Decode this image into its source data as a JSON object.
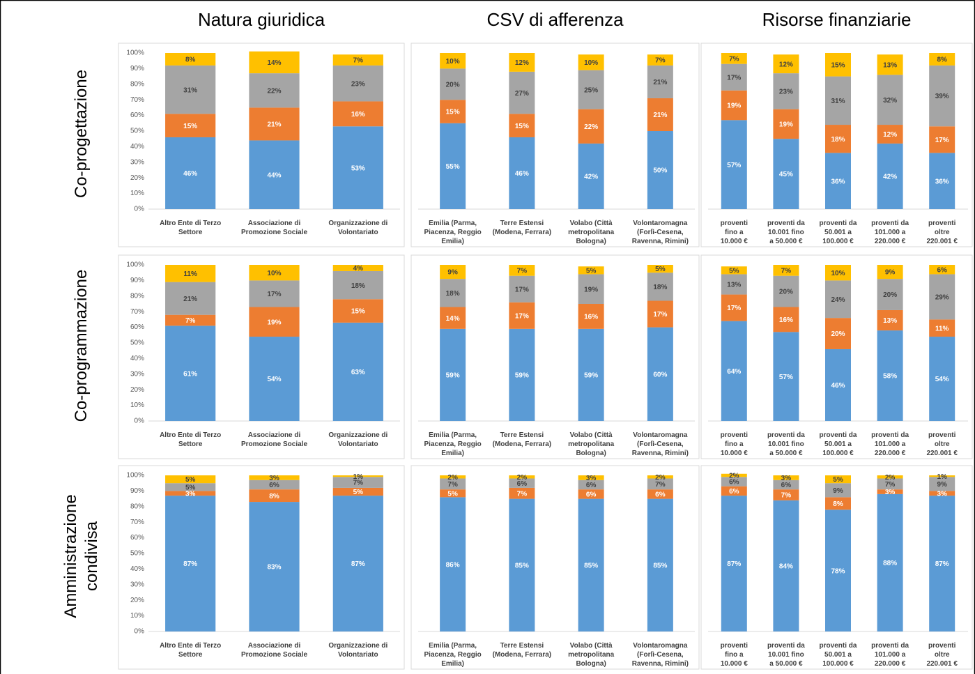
{
  "columns": [
    "Natura giuridica",
    "CSV di afferenza",
    "Risorse finanziarie"
  ],
  "rows": [
    "Co-progettazione",
    "Co-programmazione",
    "Amministrazione condivisa"
  ],
  "chart_data": [
    {
      "type": "bar",
      "stacked": true,
      "categories": [
        "Altro Ente di Terzo Settore",
        "Associazione di Promozione Sociale",
        "Organizzazione di Volontariato"
      ],
      "ylim": [
        0,
        100
      ],
      "yticks": [
        {
          "value": 0,
          "label": "0%"
        },
        {
          "value": 10,
          "label": "10%"
        },
        {
          "value": 20,
          "label": "20%"
        },
        {
          "value": 30,
          "label": "30%"
        },
        {
          "value": 40,
          "label": "40%"
        },
        {
          "value": 50,
          "label": "50%"
        },
        {
          "value": 60,
          "label": "60%"
        },
        {
          "value": 70,
          "label": "70%"
        },
        {
          "value": 80,
          "label": "80%"
        },
        {
          "value": 90,
          "label": "90%"
        },
        {
          "value": 100,
          "label": "100%"
        }
      ],
      "series": [
        {
          "color": "#5b9bd5",
          "values": [
            46,
            44,
            53
          ],
          "value_labels": [
            "46%",
            "44%",
            "53%"
          ]
        },
        {
          "color": "#ed7d31",
          "values": [
            15,
            21,
            16
          ],
          "value_labels": [
            "15%",
            "21%",
            "16%"
          ]
        },
        {
          "color": "#a5a5a5",
          "values": [
            31,
            22,
            23
          ],
          "value_labels": [
            "31%",
            "22%",
            "23%"
          ]
        },
        {
          "color": "#ffc000",
          "values": [
            8,
            14,
            7
          ],
          "value_labels": [
            "8%",
            "14%",
            "7%"
          ]
        }
      ]
    },
    {
      "type": "bar",
      "stacked": true,
      "categories": [
        "Emilia (Parma, Piacenza, Reggio Emilia)",
        "Terre Estensi (Modena, Ferrara)",
        "Volabo (Città metropolitana Bologna)",
        "Volontaromagna (Forlì-Cesena, Ravenna, Rimini)"
      ],
      "ylim": [
        0,
        100
      ],
      "series": [
        {
          "color": "#5b9bd5",
          "values": [
            55,
            46,
            42,
            50
          ],
          "value_labels": [
            "55%",
            "46%",
            "42%",
            "50%"
          ]
        },
        {
          "color": "#ed7d31",
          "values": [
            15,
            15,
            22,
            21
          ],
          "value_labels": [
            "15%",
            "15%",
            "22%",
            "21%"
          ]
        },
        {
          "color": "#a5a5a5",
          "values": [
            20,
            27,
            25,
            21
          ],
          "value_labels": [
            "20%",
            "27%",
            "25%",
            "21%"
          ]
        },
        {
          "color": "#ffc000",
          "values": [
            10,
            12,
            10,
            7
          ],
          "value_labels": [
            "10%",
            "12%",
            "10%",
            "7%"
          ]
        }
      ]
    },
    {
      "type": "bar",
      "stacked": true,
      "categories": [
        "proventi fino a 10.000 €",
        "proventi da 10.001 fino a 50.000 €",
        "proventi da 50.001 a 100.000 €",
        "proventi da 101.000 a 220.000 €",
        "proventi oltre 220.001 €"
      ],
      "ylim": [
        0,
        100
      ],
      "series": [
        {
          "color": "#5b9bd5",
          "values": [
            57,
            45,
            36,
            42,
            36
          ],
          "value_labels": [
            "57%",
            "45%",
            "36%",
            "42%",
            "36%"
          ]
        },
        {
          "color": "#ed7d31",
          "values": [
            19,
            19,
            18,
            12,
            17
          ],
          "value_labels": [
            "19%",
            "19%",
            "18%",
            "12%",
            "17%"
          ]
        },
        {
          "color": "#a5a5a5",
          "values": [
            17,
            23,
            31,
            32,
            39
          ],
          "value_labels": [
            "17%",
            "23%",
            "31%",
            "32%",
            "39%"
          ]
        },
        {
          "color": "#ffc000",
          "values": [
            7,
            12,
            15,
            13,
            8
          ],
          "value_labels": [
            "7%",
            "12%",
            "15%",
            "13%",
            "8%"
          ]
        }
      ]
    },
    {
      "type": "bar",
      "stacked": true,
      "categories": [
        "Altro Ente di Terzo Settore",
        "Associazione di Promozione Sociale",
        "Organizzazione di Volontariato"
      ],
      "ylim": [
        0,
        100
      ],
      "yticks": [
        {
          "value": 0,
          "label": "0%"
        },
        {
          "value": 10,
          "label": "10%"
        },
        {
          "value": 20,
          "label": "20%"
        },
        {
          "value": 30,
          "label": "30%"
        },
        {
          "value": 40,
          "label": "40%"
        },
        {
          "value": 50,
          "label": "50%"
        },
        {
          "value": 60,
          "label": "60%"
        },
        {
          "value": 70,
          "label": "70%"
        },
        {
          "value": 80,
          "label": "80%"
        },
        {
          "value": 90,
          "label": "90%"
        },
        {
          "value": 100,
          "label": "100%"
        }
      ],
      "series": [
        {
          "color": "#5b9bd5",
          "values": [
            61,
            54,
            63
          ],
          "value_labels": [
            "61%",
            "54%",
            "63%"
          ]
        },
        {
          "color": "#ed7d31",
          "values": [
            7,
            19,
            15
          ],
          "value_labels": [
            "7%",
            "19%",
            "15%"
          ]
        },
        {
          "color": "#a5a5a5",
          "values": [
            21,
            17,
            18
          ],
          "value_labels": [
            "21%",
            "17%",
            "18%"
          ]
        },
        {
          "color": "#ffc000",
          "values": [
            11,
            10,
            4
          ],
          "value_labels": [
            "11%",
            "10%",
            "4%"
          ]
        }
      ]
    },
    {
      "type": "bar",
      "stacked": true,
      "categories": [
        "Emilia (Parma, Piacenza, Reggio Emilia)",
        "Terre Estensi (Modena, Ferrara)",
        "Volabo (Città metropolitana Bologna)",
        "Volontaromagna (Forlì-Cesena, Ravenna, Rimini)"
      ],
      "ylim": [
        0,
        100
      ],
      "series": [
        {
          "color": "#5b9bd5",
          "values": [
            59,
            59,
            59,
            60
          ],
          "value_labels": [
            "59%",
            "59%",
            "59%",
            "60%"
          ]
        },
        {
          "color": "#ed7d31",
          "values": [
            14,
            17,
            16,
            17
          ],
          "value_labels": [
            "14%",
            "17%",
            "16%",
            "17%"
          ]
        },
        {
          "color": "#a5a5a5",
          "values": [
            18,
            17,
            19,
            18
          ],
          "value_labels": [
            "18%",
            "17%",
            "19%",
            "18%"
          ]
        },
        {
          "color": "#ffc000",
          "values": [
            9,
            7,
            5,
            5
          ],
          "value_labels": [
            "9%",
            "7%",
            "5%",
            "5%"
          ]
        }
      ]
    },
    {
      "type": "bar",
      "stacked": true,
      "categories": [
        "proventi fino a 10.000 €",
        "proventi da 10.001 fino a 50.000 €",
        "proventi da 50.001 a 100.000 €",
        "proventi da 101.000 a 220.000 €",
        "proventi oltre 220.001 €"
      ],
      "ylim": [
        0,
        100
      ],
      "series": [
        {
          "color": "#5b9bd5",
          "values": [
            64,
            57,
            46,
            58,
            54
          ],
          "value_labels": [
            "64%",
            "57%",
            "46%",
            "58%",
            "54%"
          ]
        },
        {
          "color": "#ed7d31",
          "values": [
            17,
            16,
            20,
            13,
            11
          ],
          "value_labels": [
            "17%",
            "16%",
            "20%",
            "13%",
            "11%"
          ]
        },
        {
          "color": "#a5a5a5",
          "values": [
            13,
            20,
            24,
            20,
            29
          ],
          "value_labels": [
            "13%",
            "20%",
            "24%",
            "20%",
            "29%"
          ]
        },
        {
          "color": "#ffc000",
          "values": [
            5,
            7,
            10,
            9,
            6
          ],
          "value_labels": [
            "5%",
            "7%",
            "10%",
            "9%",
            "6%"
          ]
        }
      ]
    },
    {
      "type": "bar",
      "stacked": true,
      "categories": [
        "Altro Ente di Terzo Settore",
        "Associazione di Promozione Sociale",
        "Organizzazione di Volontariato"
      ],
      "ylim": [
        0,
        100
      ],
      "yticks": [
        {
          "value": 0,
          "label": "0%"
        },
        {
          "value": 10,
          "label": "10%"
        },
        {
          "value": 20,
          "label": "20%"
        },
        {
          "value": 30,
          "label": "30%"
        },
        {
          "value": 40,
          "label": "40%"
        },
        {
          "value": 50,
          "label": "50%"
        },
        {
          "value": 60,
          "label": "60%"
        },
        {
          "value": 70,
          "label": "70%"
        },
        {
          "value": 80,
          "label": "80%"
        },
        {
          "value": 90,
          "label": "90%"
        },
        {
          "value": 100,
          "label": "100%"
        }
      ],
      "series": [
        {
          "color": "#5b9bd5",
          "values": [
            87,
            83,
            87
          ],
          "value_labels": [
            "87%",
            "83%",
            "87%"
          ]
        },
        {
          "color": "#ed7d31",
          "values": [
            3,
            8,
            5
          ],
          "value_labels": [
            "3%",
            "8%",
            "5%"
          ]
        },
        {
          "color": "#a5a5a5",
          "values": [
            5,
            6,
            7
          ],
          "value_labels": [
            "5%",
            "6%",
            "7%"
          ]
        },
        {
          "color": "#ffc000",
          "values": [
            5,
            3,
            1
          ],
          "value_labels": [
            "5%",
            "3%",
            "1%"
          ]
        }
      ]
    },
    {
      "type": "bar",
      "stacked": true,
      "categories": [
        "Emilia (Parma, Piacenza, Reggio Emilia)",
        "Terre Estensi (Modena, Ferrara)",
        "Volabo (Città metropolitana Bologna)",
        "Volontaromagna (Forlì-Cesena, Ravenna, Rimini)"
      ],
      "ylim": [
        0,
        100
      ],
      "series": [
        {
          "color": "#5b9bd5",
          "values": [
            86,
            85,
            85,
            85
          ],
          "value_labels": [
            "86%",
            "85%",
            "85%",
            "85%"
          ]
        },
        {
          "color": "#ed7d31",
          "values": [
            5,
            7,
            6,
            6
          ],
          "value_labels": [
            "5%",
            "7%",
            "6%",
            "6%"
          ]
        },
        {
          "color": "#a5a5a5",
          "values": [
            7,
            6,
            6,
            7
          ],
          "value_labels": [
            "7%",
            "6%",
            "6%",
            "7%"
          ]
        },
        {
          "color": "#ffc000",
          "values": [
            2,
            2,
            3,
            2
          ],
          "value_labels": [
            "2%",
            "2%",
            "3%",
            "2%"
          ]
        }
      ]
    },
    {
      "type": "bar",
      "stacked": true,
      "categories": [
        "proventi fino a 10.000 €",
        "proventi da 10.001 fino a 50.000 €",
        "proventi da 50.001 a 100.000 €",
        "proventi da 101.000 a 220.000 €",
        "proventi oltre 220.001 €"
      ],
      "ylim": [
        0,
        100
      ],
      "series": [
        {
          "color": "#5b9bd5",
          "values": [
            87,
            84,
            78,
            88,
            87
          ],
          "value_labels": [
            "87%",
            "84%",
            "78%",
            "88%",
            "87%"
          ]
        },
        {
          "color": "#ed7d31",
          "values": [
            6,
            7,
            8,
            3,
            3
          ],
          "value_labels": [
            "6%",
            "7%",
            "8%",
            "3%",
            "3%"
          ]
        },
        {
          "color": "#a5a5a5",
          "values": [
            6,
            6,
            9,
            7,
            9
          ],
          "value_labels": [
            "6%",
            "6%",
            "9%",
            "7%",
            "9%"
          ]
        },
        {
          "color": "#ffc000",
          "values": [
            2,
            3,
            5,
            2,
            1
          ],
          "value_labels": [
            "2%",
            "3%",
            "5%",
            "2%",
            "1%"
          ]
        }
      ]
    }
  ]
}
